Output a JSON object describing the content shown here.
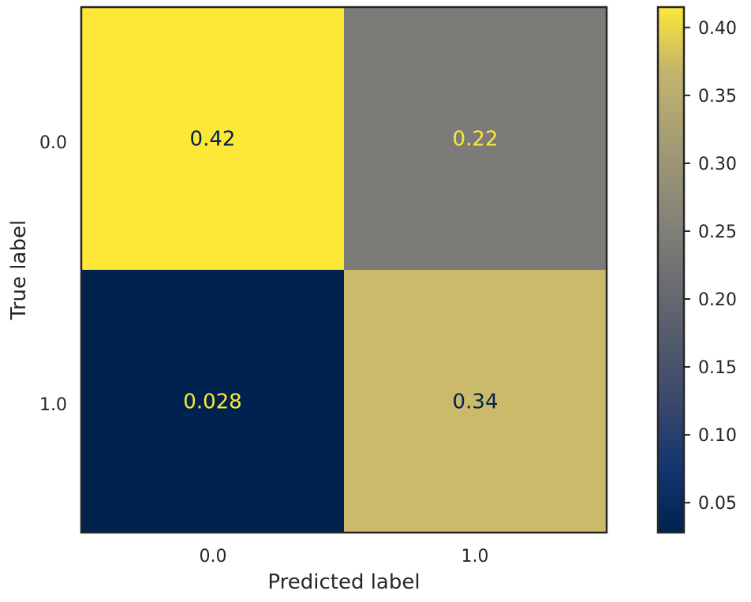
{
  "chart_data": {
    "type": "heatmap",
    "title": "",
    "xlabel": "Predicted label",
    "ylabel": "True label",
    "x_categories": [
      "0.0",
      "1.0"
    ],
    "y_categories": [
      "0.0",
      "1.0"
    ],
    "values": [
      [
        0.42,
        0.22
      ],
      [
        0.028,
        0.34
      ]
    ],
    "value_labels": [
      [
        "0.42",
        "0.22"
      ],
      [
        "0.028",
        "0.34"
      ]
    ],
    "colormap": "cividis",
    "colorbar": {
      "range": [
        0.028,
        0.415
      ],
      "ticks": [
        0.05,
        0.1,
        0.15,
        0.2,
        0.25,
        0.3,
        0.35,
        0.4
      ],
      "tick_labels": [
        "0.05",
        "0.10",
        "0.15",
        "0.20",
        "0.25",
        "0.30",
        "0.35",
        "0.40"
      ]
    },
    "colors": {
      "cell_00": "#fde737",
      "cell_01": "#7c7b78",
      "cell_10": "#00224e",
      "cell_11": "#cbba69",
      "text_dark": "#00224e",
      "text_light": "#fde737"
    },
    "grid": false
  }
}
